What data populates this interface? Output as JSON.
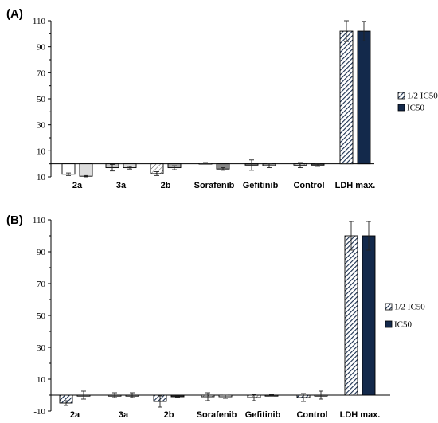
{
  "chart_data": [
    {
      "type": "bar",
      "panel_label": "(A)",
      "categories": [
        "2a",
        "3a",
        "2b",
        "Sorafenib",
        "Gefitinib",
        "Control",
        "LDH max."
      ],
      "ylim": [
        -10,
        110
      ],
      "yticks": [
        -10,
        10,
        30,
        50,
        70,
        90,
        110
      ],
      "legend_position": "right",
      "series": [
        {
          "name": "1/2 IC50",
          "pattern": "diagonal-hatch",
          "values": [
            -8,
            -3,
            -7.5,
            0.5,
            -1,
            -1,
            102
          ],
          "errors": [
            1,
            2.5,
            1.5,
            0.5,
            4,
            2,
            8
          ]
        },
        {
          "name": "IC50",
          "pattern": "solid",
          "values": [
            -9.5,
            -3,
            -3,
            -4,
            -1.5,
            -1,
            102
          ],
          "errors": [
            0.5,
            1,
            1.5,
            1,
            1.5,
            1,
            7.5
          ]
        }
      ],
      "colors": {
        "hatch": "#1a2f4f",
        "solid": "#13294b",
        "grey": "#a0a0a0",
        "light": "#dcdcdc"
      }
    },
    {
      "type": "bar",
      "panel_label": "(B)",
      "categories": [
        "2a",
        "3a",
        "2b",
        "Sorafenib",
        "Gefitinib",
        "Control",
        "LDH max."
      ],
      "ylim": [
        -10,
        110
      ],
      "yticks": [
        -10,
        10,
        30,
        50,
        70,
        90,
        110
      ],
      "legend_position": "right",
      "series": [
        {
          "name": "1/2 IC50",
          "pattern": "diagonal-hatch",
          "values": [
            -5,
            0,
            -4,
            -1,
            -1.5,
            -1.5,
            100
          ],
          "errors": [
            1.5,
            1.5,
            3.5,
            2.5,
            2,
            2.5,
            9
          ]
        },
        {
          "name": "IC50",
          "pattern": "solid",
          "values": [
            0,
            0,
            -1,
            -1,
            0,
            0,
            100
          ],
          "errors": [
            2.5,
            1.5,
            0.5,
            1,
            0.5,
            2.5,
            9
          ]
        }
      ],
      "colors": {
        "hatch": "#1a2f4f",
        "solid": "#13294b",
        "grey": "#a0a0a0",
        "light": "#dcdcdc"
      }
    }
  ]
}
